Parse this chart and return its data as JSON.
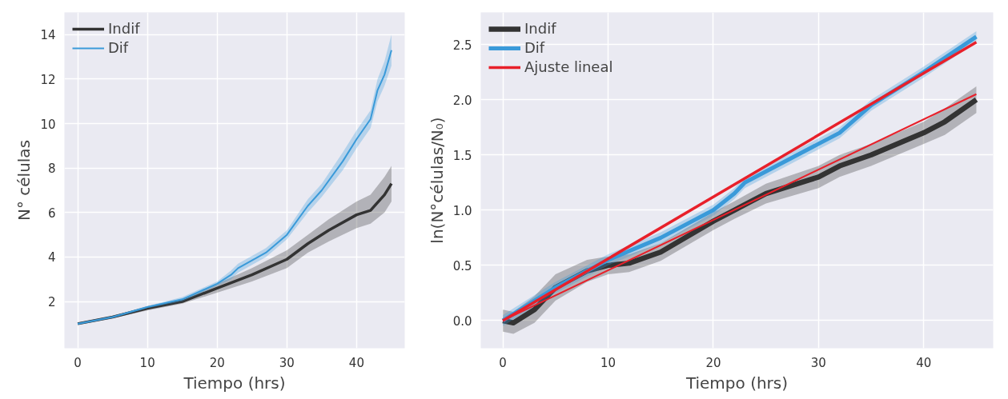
{
  "chart_data": [
    {
      "type": "line",
      "xlabel": "Tiempo (hrs)",
      "ylabel": "N° células",
      "xlim": [
        -1.9,
        46.9
      ],
      "ylim": [
        -0.1,
        15.0
      ],
      "xticks": [
        0,
        10,
        20,
        30,
        40
      ],
      "yticks": [
        2,
        4,
        6,
        8,
        10,
        12,
        14
      ],
      "grid": true,
      "legend": "top left",
      "series": [
        {
          "name": "Indif",
          "color": "#333333",
          "x": [
            0,
            5,
            10,
            15,
            20,
            25,
            30,
            33,
            36,
            40,
            42,
            44,
            45
          ],
          "values": [
            1.0,
            1.3,
            1.7,
            2.0,
            2.6,
            3.2,
            3.9,
            4.6,
            5.2,
            5.9,
            6.1,
            6.8,
            7.3
          ],
          "lower": [
            0.95,
            1.25,
            1.6,
            1.9,
            2.4,
            2.9,
            3.5,
            4.2,
            4.7,
            5.3,
            5.5,
            6.0,
            6.5
          ],
          "upper": [
            1.05,
            1.35,
            1.8,
            2.1,
            2.8,
            3.5,
            4.3,
            5.0,
            5.7,
            6.5,
            6.8,
            7.6,
            8.1
          ]
        },
        {
          "name": "Dif",
          "color": "#3a9ad9",
          "x": [
            0,
            5,
            10,
            15,
            20,
            22,
            23,
            27,
            30,
            33,
            35,
            38,
            40,
            42,
            43,
            44,
            45
          ],
          "values": [
            1.0,
            1.3,
            1.75,
            2.1,
            2.8,
            3.2,
            3.5,
            4.2,
            5.0,
            6.3,
            7.0,
            8.3,
            9.3,
            10.2,
            11.5,
            12.2,
            13.3
          ],
          "lower": [
            0.95,
            1.25,
            1.7,
            2.0,
            2.7,
            3.0,
            3.3,
            4.0,
            4.8,
            6.0,
            6.7,
            7.9,
            8.9,
            9.8,
            11.0,
            11.7,
            12.6
          ],
          "upper": [
            1.05,
            1.35,
            1.8,
            2.2,
            2.9,
            3.4,
            3.7,
            4.4,
            5.2,
            6.6,
            7.3,
            8.7,
            9.7,
            10.6,
            12.0,
            12.8,
            14.0
          ]
        }
      ]
    },
    {
      "type": "line",
      "xlabel": "Tiempo (hrs)",
      "ylabel": "ln(N°células/N₀)",
      "xlim": [
        -2.1,
        46.6
      ],
      "ylim": [
        -0.25,
        2.79
      ],
      "xticks": [
        0,
        10,
        20,
        30,
        40
      ],
      "yticks": [
        {
          "value": 0,
          "label": "0.0"
        },
        0.5,
        {
          "value": 1,
          "label": "1.0"
        },
        1.5,
        {
          "value": 2,
          "label": "2.0"
        },
        2.5
      ],
      "grid": true,
      "legend": "top left",
      "series": [
        {
          "name": "Indif",
          "color": "#333333",
          "x": [
            0,
            1,
            3,
            5,
            8,
            10,
            12,
            15,
            20,
            22,
            25,
            30,
            32,
            35,
            40,
            42,
            45
          ],
          "values": [
            0.0,
            -0.02,
            0.1,
            0.3,
            0.45,
            0.5,
            0.52,
            0.62,
            0.9,
            1.0,
            1.15,
            1.3,
            1.4,
            1.5,
            1.7,
            1.8,
            2.0
          ],
          "lower": [
            -0.1,
            -0.12,
            -0.02,
            0.18,
            0.35,
            0.42,
            0.44,
            0.54,
            0.82,
            0.92,
            1.06,
            1.2,
            1.3,
            1.4,
            1.6,
            1.68,
            1.88
          ],
          "upper": [
            0.1,
            0.08,
            0.22,
            0.42,
            0.55,
            0.58,
            0.6,
            0.7,
            0.98,
            1.08,
            1.24,
            1.4,
            1.5,
            1.6,
            1.8,
            1.92,
            2.12
          ]
        },
        {
          "name": "Dif",
          "color": "#3a9ad9",
          "x": [
            0,
            5,
            10,
            15,
            20,
            22,
            23,
            30,
            32,
            35,
            40,
            45
          ],
          "values": [
            0.0,
            0.3,
            0.55,
            0.75,
            1.0,
            1.15,
            1.25,
            1.6,
            1.7,
            1.95,
            2.25,
            2.57
          ],
          "lower": [
            -0.05,
            0.25,
            0.5,
            0.7,
            0.95,
            1.1,
            1.2,
            1.55,
            1.65,
            1.9,
            2.2,
            2.52
          ],
          "upper": [
            0.05,
            0.35,
            0.6,
            0.8,
            1.05,
            1.2,
            1.3,
            1.65,
            1.75,
            2.0,
            2.3,
            2.62
          ]
        },
        {
          "name": "Ajuste lineal",
          "color": "#e8202a",
          "x": [
            0,
            45
          ],
          "values": [
            0.0,
            2.52
          ]
        },
        {
          "color": "#e8202a",
          "x": [
            0,
            45
          ],
          "values": [
            0.0,
            2.05
          ]
        }
      ]
    }
  ]
}
